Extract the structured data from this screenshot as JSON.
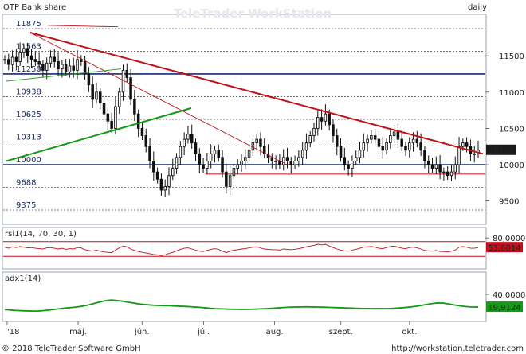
{
  "header": {
    "title": "OTP Bank share",
    "watermark": "TeleTrader WorkStation",
    "interval": "daily"
  },
  "footer": {
    "copyright": "© 2018 TeleTrader Software GmbH",
    "url": "http://workstation.teletrader.com"
  },
  "colors": {
    "price": "#111111",
    "resistance": "#c0111a",
    "support": "#149a14",
    "rsi": "#c0111a",
    "adx": "#149a14",
    "hline_blue": "#1a2a6e"
  },
  "chart_data": [
    {
      "type": "candlestick",
      "title": "OTP Bank share",
      "ylim": [
        9200,
        12050
      ],
      "y_ticks_left": [
        "11875",
        "11563",
        "11250",
        "10938",
        "10625",
        "10313",
        "10000",
        "9688",
        "9375"
      ],
      "y_ticks_right": [
        "11500",
        "11000",
        "10500",
        "10000",
        "9500"
      ],
      "x_ticks": [
        "'18",
        "máj.",
        "jún.",
        "júl.",
        "aug.",
        "szept.",
        "okt."
      ],
      "last_value": "10200",
      "close": [
        11450,
        11380,
        11480,
        11420,
        11550,
        11600,
        11500,
        11450,
        11420,
        11380,
        11300,
        11400,
        11480,
        11420,
        11320,
        11380,
        11280,
        11360,
        11300,
        11450,
        11420,
        11250,
        11100,
        10900,
        11000,
        10850,
        10700,
        10600,
        10500,
        10800,
        11000,
        11300,
        11200,
        10900,
        10700,
        10500,
        10400,
        10250,
        10050,
        9900,
        9800,
        9650,
        9700,
        9850,
        9950,
        10100,
        10250,
        10350,
        10420,
        10300,
        10150,
        10000,
        9950,
        10050,
        10150,
        10200,
        10100,
        9900,
        9700,
        9850,
        9950,
        10000,
        10050,
        10100,
        10200,
        10300,
        10350,
        10250,
        10150,
        10100,
        10050,
        10050,
        10000,
        10100,
        10050,
        10000,
        10050,
        10100,
        10200,
        10300,
        10400,
        10500,
        10650,
        10600,
        10700,
        10550,
        10400,
        10250,
        10100,
        10000,
        9950,
        10050,
        10100,
        10200,
        10300,
        10350,
        10400,
        10350,
        10250,
        10200,
        10300,
        10400,
        10450,
        10350,
        10250,
        10200,
        10300,
        10350,
        10300,
        10200,
        10050,
        10000,
        9950,
        10000,
        9900,
        9900,
        9850,
        9900,
        10000,
        10250,
        10300,
        10250,
        10150,
        10150,
        10200
      ],
      "support_levels": [
        "9375",
        "9688",
        "10000",
        "10313",
        "10625",
        "10938",
        "11250",
        "11563",
        "11875"
      ]
    },
    {
      "type": "line",
      "title": "rsi1(14, 70, 30, 1)",
      "ylim": [
        0,
        100
      ],
      "y_ticks_right": [
        "80,0000"
      ],
      "last_value": "53,6014",
      "values": [
        55,
        52,
        56,
        54,
        57,
        55,
        53,
        54,
        52,
        51,
        50,
        53,
        54,
        52,
        50,
        52,
        49,
        51,
        50,
        54,
        53,
        48,
        46,
        44,
        47,
        44,
        42,
        41,
        40,
        47,
        53,
        58,
        56,
        50,
        46,
        43,
        41,
        39,
        37,
        35,
        34,
        32,
        34,
        38,
        41,
        45,
        49,
        52,
        53,
        50,
        47,
        44,
        43,
        46,
        49,
        51,
        49,
        44,
        40,
        44,
        47,
        48,
        50,
        51,
        53,
        55,
        56,
        53,
        50,
        49,
        48,
        48,
        47,
        50,
        49,
        48,
        49,
        51,
        53,
        56,
        58,
        60,
        63,
        61,
        63,
        58,
        54,
        50,
        47,
        45,
        44,
        47,
        49,
        52,
        55,
        56,
        57,
        55,
        52,
        51,
        54,
        57,
        58,
        55,
        52,
        51,
        54,
        55,
        53,
        50,
        46,
        45,
        44,
        46,
        43,
        43,
        42,
        44,
        47,
        55,
        57,
        55,
        52,
        52,
        54
      ]
    },
    {
      "type": "line",
      "title": "adx1(14)",
      "ylim": [
        0,
        70
      ],
      "y_ticks_right": [
        "40,0000"
      ],
      "last_value": "19,9124",
      "values": [
        16,
        15.5,
        15,
        14.5,
        14.3,
        14,
        13.8,
        13.7,
        13.6,
        13.8,
        14.2,
        14.8,
        15.5,
        16.3,
        17,
        17.8,
        18.4,
        19,
        19.5,
        20.2,
        21,
        22,
        23.5,
        25,
        26.5,
        28,
        29.5,
        30.5,
        31,
        30.5,
        29.8,
        29,
        28,
        27,
        26,
        25,
        24.3,
        23.7,
        23.2,
        22.8,
        22.5,
        22.3,
        22.1,
        22,
        21.8,
        21.5,
        21.2,
        21,
        20.7,
        20.3,
        19.9,
        19.5,
        19,
        18.5,
        18,
        17.5,
        17.2,
        17,
        16.8,
        16.6,
        16.5,
        16.4,
        16.3,
        16.3,
        16.4,
        16.6,
        16.8,
        17,
        17.3,
        17.6,
        18,
        18.4,
        18.8,
        19.2,
        19.5,
        19.8,
        20,
        20.1,
        20.2,
        20.3,
        20.2,
        20.1,
        20,
        19.8,
        19.6,
        19.4,
        19.2,
        19,
        18.8,
        18.6,
        18.4,
        18.2,
        18,
        17.8,
        17.7,
        17.6,
        17.5,
        17.4,
        17.4,
        17.4,
        17.5,
        17.7,
        18,
        18.4,
        18.8,
        19.3,
        19.9,
        20.6,
        21.4,
        22.3,
        23.4,
        24.5,
        25.5,
        26.2,
        26.5,
        26,
        25,
        24,
        23,
        22,
        21.2,
        20.6,
        20.2,
        20,
        19.9
      ]
    }
  ]
}
